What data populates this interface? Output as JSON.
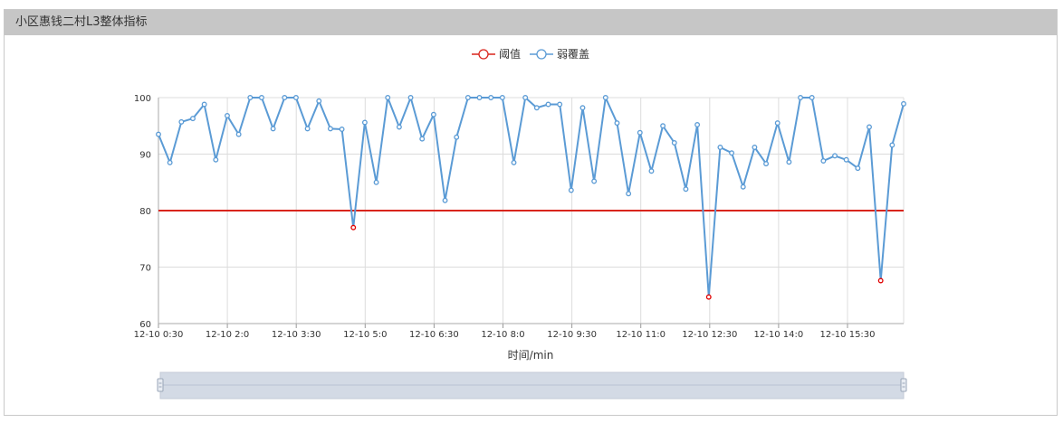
{
  "panel": {
    "title": "小区惠钱二村L3整体指标"
  },
  "legend": [
    {
      "name": "阈值",
      "color": "#d9251c"
    },
    {
      "name": "弱覆盖",
      "color": "#5b9bd5"
    }
  ],
  "chart_data": {
    "type": "line",
    "xlabel": "时间/min",
    "ylabel": "",
    "ylim": [
      60,
      100
    ],
    "yticks": [
      60,
      70,
      80,
      90,
      100
    ],
    "grid": true,
    "legend_position": "top-center",
    "tick_labels": [
      "12-10 0:30",
      "12-10 2:0",
      "12-10 3:30",
      "12-10 5:0",
      "12-10 6:30",
      "12-10 8:0",
      "12-10 9:30",
      "12-10 11:0",
      "12-10 12:30",
      "12-10 14:0",
      "12-10 15:30"
    ],
    "threshold": 80,
    "series": [
      {
        "name": "阈值",
        "color": "#d9251c",
        "values": [
          80,
          80
        ]
      },
      {
        "name": "弱覆盖",
        "color": "#5b9bd5",
        "highlight_color": "#e00000",
        "values": [
          93.5,
          88.5,
          95.7,
          96.3,
          98.8,
          89.0,
          96.8,
          93.5,
          100,
          100,
          94.5,
          100,
          100,
          94.5,
          99.4,
          94.5,
          94.4,
          77.0,
          95.6,
          85.0,
          100,
          94.8,
          100,
          92.7,
          97.0,
          81.8,
          93.0,
          100,
          100,
          100,
          100,
          88.5,
          100,
          98.2,
          98.8,
          98.8,
          83.6,
          98.2,
          85.2,
          100,
          95.5,
          83.0,
          93.8,
          87.0,
          95.0,
          92.0,
          83.8,
          95.2,
          64.7,
          91.2,
          90.2,
          84.2,
          91.2,
          88.3,
          95.5,
          88.6,
          100,
          100,
          88.8,
          89.7,
          89.0,
          87.5,
          94.8,
          67.6,
          91.6,
          98.9
        ]
      }
    ]
  },
  "slider": {
    "start": 0,
    "end": 100
  }
}
